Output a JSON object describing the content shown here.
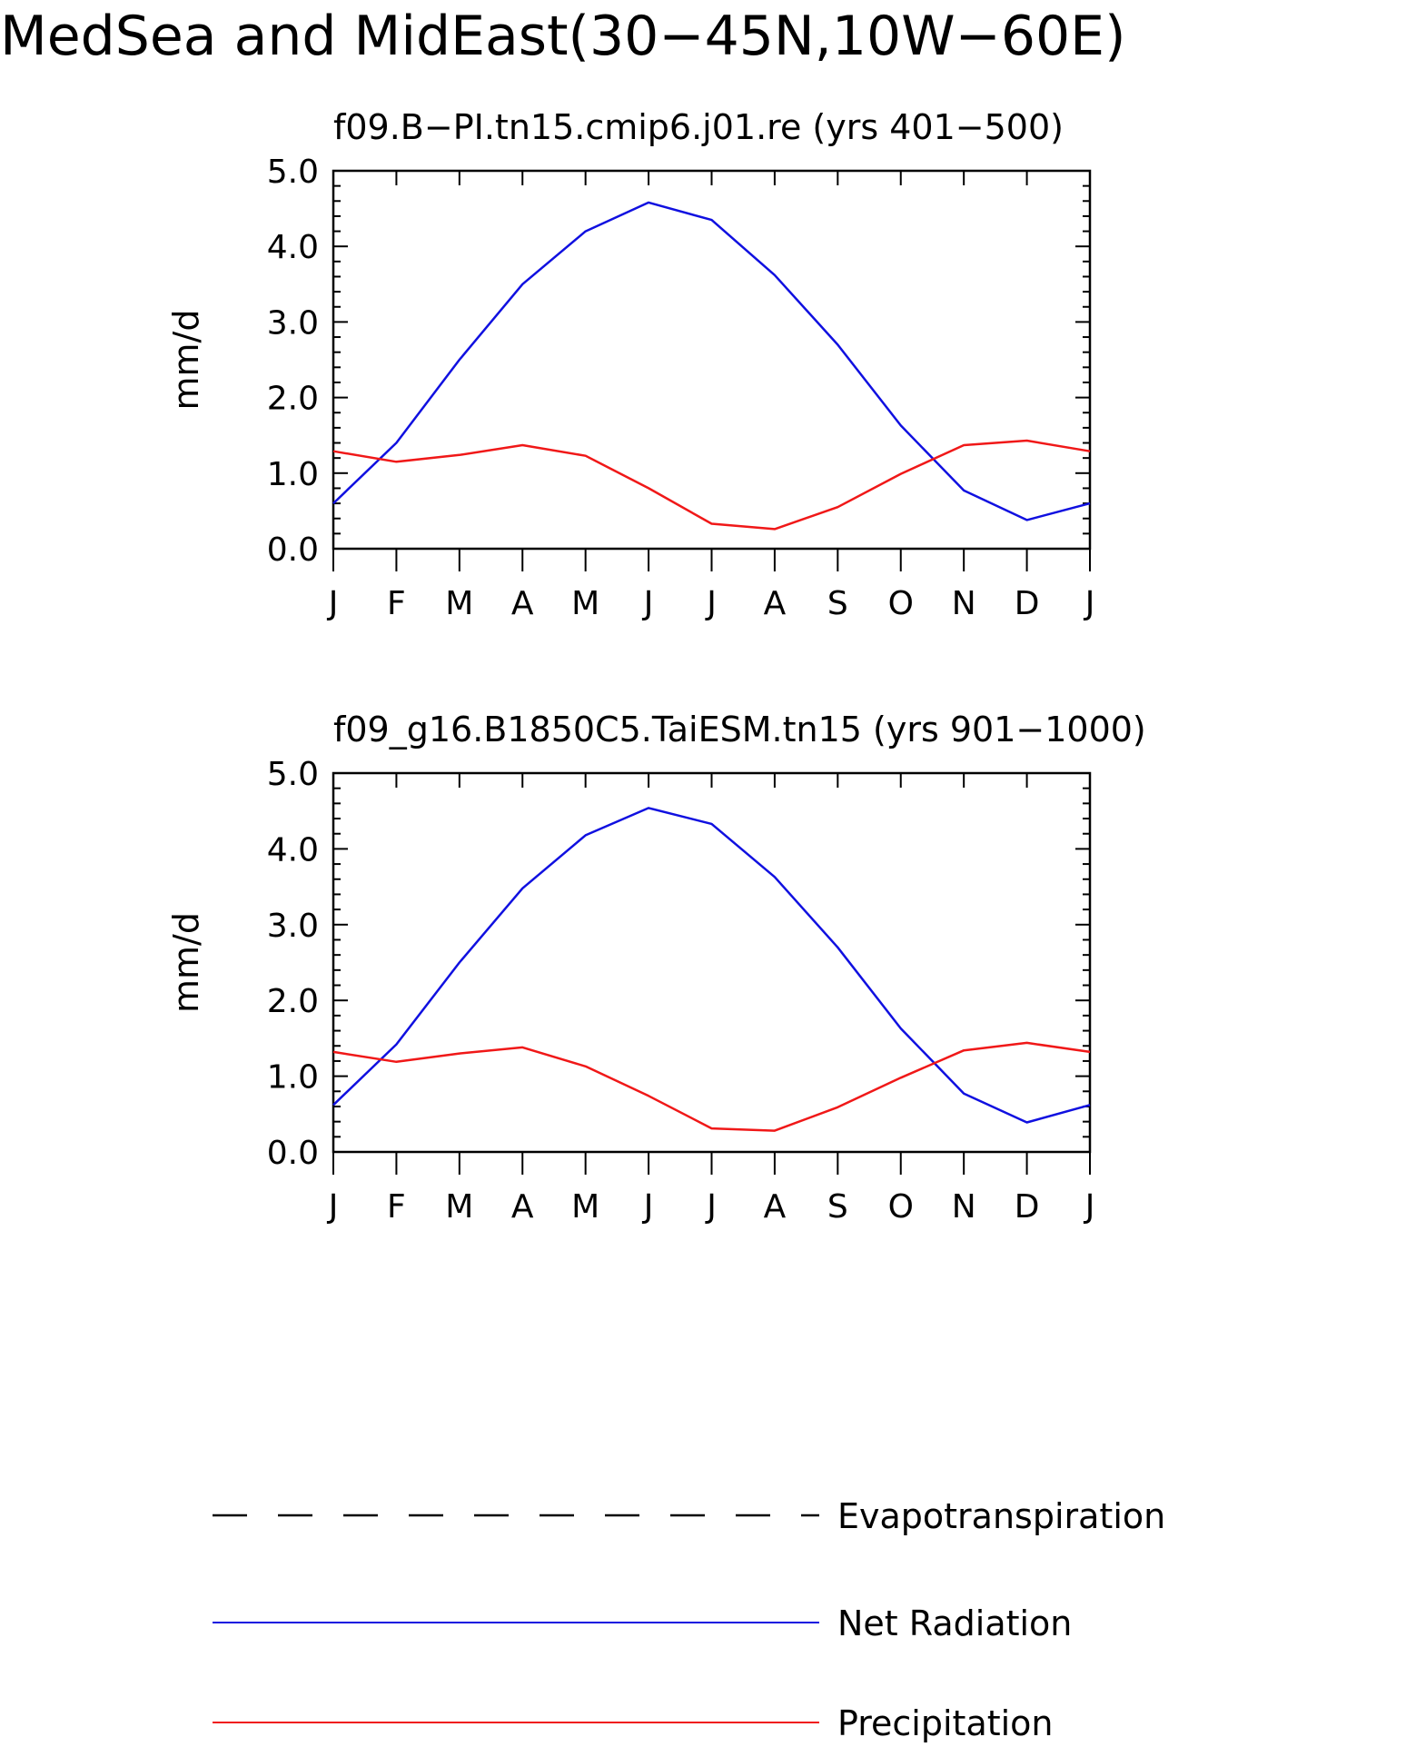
{
  "figure": {
    "title": "MedSea and MidEast(30−45N,10W−60E)",
    "colors": {
      "net_radiation": "#1010e0",
      "precipitation": "#f01818",
      "evapotranspiration": "#000000"
    }
  },
  "legend": {
    "items": [
      {
        "label": "Evapotranspiration",
        "style": "dashed",
        "color": "#000000"
      },
      {
        "label": "Net Radiation",
        "style": "solid",
        "color": "#1010e0"
      },
      {
        "label": "Precipitation",
        "style": "solid",
        "color": "#f01818"
      }
    ]
  },
  "chart_data": [
    {
      "type": "line",
      "title": "f09.B−PI.tn15.cmip6.j01.re (yrs 401−500)",
      "ylabel": "mm/d",
      "xlabel": "",
      "categories": [
        "J",
        "F",
        "M",
        "A",
        "M",
        "J",
        "J",
        "A",
        "S",
        "O",
        "N",
        "D",
        "J"
      ],
      "ylim": [
        0,
        5
      ],
      "yticks": [
        "0.0",
        "1.0",
        "2.0",
        "3.0",
        "4.0",
        "5.0"
      ],
      "grid": false,
      "series": [
        {
          "name": "Net Radiation",
          "color": "#1010e0",
          "values": [
            0.6,
            1.4,
            2.5,
            3.5,
            4.2,
            4.58,
            4.35,
            3.62,
            2.7,
            1.63,
            0.77,
            0.38,
            0.6
          ]
        },
        {
          "name": "Precipitation",
          "color": "#f01818",
          "values": [
            1.29,
            1.15,
            1.24,
            1.37,
            1.23,
            0.8,
            0.33,
            0.26,
            0.55,
            0.99,
            1.37,
            1.43,
            1.29
          ]
        }
      ]
    },
    {
      "type": "line",
      "title": "f09_g16.B1850C5.TaiESM.tn15 (yrs 901−1000)",
      "ylabel": "mm/d",
      "xlabel": "",
      "categories": [
        "J",
        "F",
        "M",
        "A",
        "M",
        "J",
        "J",
        "A",
        "S",
        "O",
        "N",
        "D",
        "J"
      ],
      "ylim": [
        0,
        5
      ],
      "yticks": [
        "0.0",
        "1.0",
        "2.0",
        "3.0",
        "4.0",
        "5.0"
      ],
      "grid": false,
      "series": [
        {
          "name": "Net Radiation",
          "color": "#1010e0",
          "values": [
            0.62,
            1.42,
            2.5,
            3.48,
            4.18,
            4.54,
            4.33,
            3.63,
            2.7,
            1.63,
            0.77,
            0.39,
            0.62
          ]
        },
        {
          "name": "Precipitation",
          "color": "#f01818",
          "values": [
            1.32,
            1.19,
            1.3,
            1.38,
            1.13,
            0.74,
            0.31,
            0.28,
            0.59,
            0.98,
            1.34,
            1.44,
            1.32
          ]
        }
      ]
    }
  ]
}
